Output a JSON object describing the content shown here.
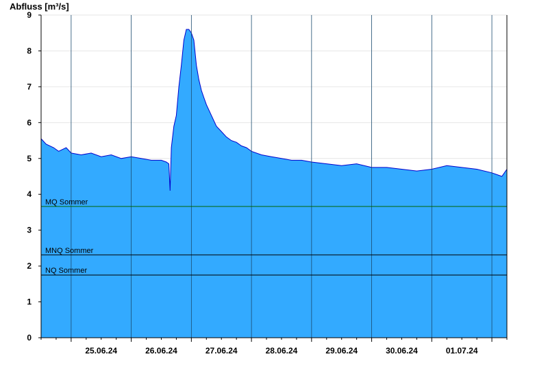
{
  "chart_data": {
    "type": "area",
    "ylabel": "Abfluss [m³/s]",
    "xlabel": "",
    "title": "",
    "ylim": [
      0,
      9
    ],
    "yticks": [
      0,
      1,
      2,
      3,
      4,
      5,
      6,
      7,
      8,
      9
    ],
    "xlim": [
      "24.06.24 12:00",
      "02.07.24 06:00"
    ],
    "day_gridlines": [
      "25.06.24",
      "26.06.24",
      "27.06.24",
      "28.06.24",
      "29.06.24",
      "30.06.24",
      "01.07.24",
      "02.07.24"
    ],
    "xtick_labels": [
      "25.06.24",
      "26.06.24",
      "27.06.24",
      "28.06.24",
      "29.06.24",
      "30.06.24",
      "01.07.24"
    ],
    "grid": true,
    "colors": {
      "fill": "#33aaff",
      "line": "#0000cc",
      "mq": "#006600",
      "mnq": "#000000",
      "nq": "#000000",
      "grid": "#e6e6e6"
    },
    "reference_lines": [
      {
        "label": "MQ Sommer",
        "value": 3.66
      },
      {
        "label": "MNQ Sommer",
        "value": 2.31
      },
      {
        "label": "NQ Sommer",
        "value": 1.75
      }
    ],
    "series": [
      {
        "x": [
          "24.06.24 12:00",
          "24.06.24 14:00",
          "24.06.24 17:00",
          "24.06.24 19:00",
          "24.06.24 22:00",
          "25.06.24 00:00",
          "25.06.24 04:00",
          "25.06.24 08:00",
          "25.06.24 12:00",
          "25.06.24 16:00",
          "25.06.24 20:00",
          "26.06.24 00:00",
          "26.06.24 04:00",
          "26.06.24 08:00",
          "26.06.24 12:00",
          "26.06.24 14:00",
          "26.06.24 15:00",
          "26.06.24 15:30",
          "26.06.24 16:00",
          "26.06.24 17:00",
          "26.06.24 18:00",
          "26.06.24 19:00",
          "26.06.24 20:00",
          "26.06.24 21:00",
          "26.06.24 22:00",
          "26.06.24 23:00",
          "27.06.24 00:00",
          "27.06.24 01:00",
          "27.06.24 02:00",
          "27.06.24 03:00",
          "27.06.24 04:00",
          "27.06.24 05:00",
          "27.06.24 06:00",
          "27.06.24 08:00",
          "27.06.24 10:00",
          "27.06.24 12:00",
          "27.06.24 14:00",
          "27.06.24 16:00",
          "27.06.24 18:00",
          "27.06.24 20:00",
          "27.06.24 22:00",
          "28.06.24 00:00",
          "28.06.24 04:00",
          "28.06.24 08:00",
          "28.06.24 12:00",
          "28.06.24 16:00",
          "28.06.24 20:00",
          "29.06.24 00:00",
          "29.06.24 06:00",
          "29.06.24 12:00",
          "29.06.24 18:00",
          "30.06.24 00:00",
          "30.06.24 06:00",
          "30.06.24 12:00",
          "30.06.24 18:00",
          "01.07.24 00:00",
          "01.07.24 06:00",
          "01.07.24 12:00",
          "01.07.24 18:00",
          "02.07.24 00:00",
          "02.07.24 04:00",
          "02.07.24 06:00"
        ],
        "y": [
          5.55,
          5.4,
          5.3,
          5.2,
          5.3,
          5.15,
          5.1,
          5.15,
          5.05,
          5.1,
          5.0,
          5.05,
          5.0,
          4.95,
          4.95,
          4.9,
          4.85,
          4.1,
          5.3,
          5.9,
          6.2,
          7.0,
          7.6,
          8.3,
          8.6,
          8.6,
          8.5,
          8.3,
          7.6,
          7.2,
          6.9,
          6.7,
          6.5,
          6.2,
          5.9,
          5.75,
          5.6,
          5.5,
          5.45,
          5.35,
          5.3,
          5.2,
          5.1,
          5.05,
          5.0,
          4.95,
          4.95,
          4.9,
          4.85,
          4.8,
          4.85,
          4.75,
          4.75,
          4.7,
          4.65,
          4.7,
          4.8,
          4.75,
          4.7,
          4.6,
          4.5,
          4.7
        ]
      }
    ]
  }
}
